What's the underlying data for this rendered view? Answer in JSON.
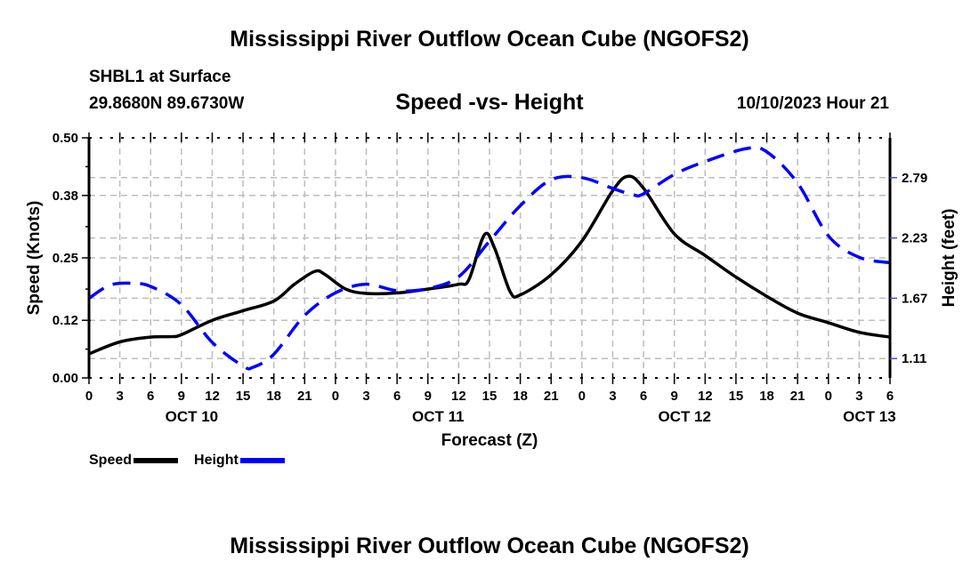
{
  "header": {
    "title": "Mississippi River Outflow Ocean Cube (NGOFS2)",
    "station": "SHBL1 at Surface",
    "coords": "29.8680N  89.6730W",
    "subtitle": "Speed -vs- Height",
    "datetime": "10/10/2023 Hour 21"
  },
  "footer": {
    "title": "Mississippi River Outflow Ocean Cube (NGOFS2)"
  },
  "legend": {
    "speed_label": "Speed",
    "height_label": "Height"
  },
  "chart_data": {
    "type": "line",
    "title": "Speed -vs- Height",
    "xlabel": "Forecast (Z)",
    "ylabel": "Speed (Knots)",
    "y2label": "Height (feet)",
    "xlim": [
      0,
      78
    ],
    "ylim": [
      0,
      0.5
    ],
    "y2lim": [
      0.93,
      3.16
    ],
    "grid": true,
    "legend_position": "bottom-left",
    "x_ticks": [
      0,
      3,
      6,
      9,
      12,
      15,
      18,
      21,
      24,
      27,
      30,
      33,
      36,
      39,
      42,
      45,
      48,
      51,
      54,
      57,
      60,
      63,
      66,
      69,
      72,
      75,
      78
    ],
    "x_tick_labels": [
      "0",
      "3",
      "6",
      "9",
      "12",
      "15",
      "18",
      "21",
      "0",
      "3",
      "6",
      "9",
      "12",
      "15",
      "18",
      "21",
      "0",
      "3",
      "6",
      "9",
      "12",
      "15",
      "18",
      "21",
      "0",
      "3",
      "6"
    ],
    "date_labels": [
      {
        "label": "OCT 10",
        "x": 10
      },
      {
        "label": "OCT 11",
        "x": 34
      },
      {
        "label": "OCT 12",
        "x": 58
      },
      {
        "label": "OCT 13",
        "x": 76
      }
    ],
    "y_ticks": [
      0.0,
      0.12,
      0.25,
      0.38,
      0.5
    ],
    "y_tick_labels": [
      "0.00",
      "0.12",
      "0.25",
      "0.38",
      "0.50"
    ],
    "y2_ticks": [
      1.11,
      1.67,
      2.23,
      2.79
    ],
    "y2_tick_labels": [
      "1.11",
      "1.67",
      "2.23",
      "2.79"
    ],
    "series": [
      {
        "name": "Speed",
        "axis": "left",
        "color": "#000000",
        "style": "solid",
        "x": [
          0,
          3,
          6,
          8,
          9,
          12,
          15,
          18,
          20,
          22,
          23,
          25,
          27,
          30,
          33,
          36,
          37,
          38.5,
          39.5,
          41,
          42,
          45,
          48,
          51,
          52.5,
          54,
          57,
          60,
          63,
          66,
          69,
          72,
          75,
          78
        ],
        "values": [
          0.05,
          0.075,
          0.085,
          0.086,
          0.09,
          0.12,
          0.14,
          0.16,
          0.195,
          0.222,
          0.215,
          0.185,
          0.176,
          0.177,
          0.185,
          0.195,
          0.205,
          0.298,
          0.27,
          0.18,
          0.173,
          0.215,
          0.285,
          0.39,
          0.42,
          0.395,
          0.3,
          0.255,
          0.21,
          0.17,
          0.135,
          0.115,
          0.095,
          0.085
        ]
      },
      {
        "name": "Height",
        "axis": "right",
        "color": "#0000ff",
        "style": "dashed",
        "x": [
          0,
          2,
          4,
          6,
          9,
          12,
          15,
          16,
          18,
          21,
          24,
          27,
          30,
          33,
          36,
          39,
          42,
          45,
          48,
          51,
          53,
          54,
          57,
          60,
          64,
          66,
          69,
          72,
          75,
          78
        ],
        "values": [
          1.67,
          1.79,
          1.81,
          1.78,
          1.61,
          1.26,
          1.04,
          1.03,
          1.15,
          1.51,
          1.72,
          1.8,
          1.74,
          1.76,
          1.87,
          2.2,
          2.53,
          2.77,
          2.79,
          2.69,
          2.63,
          2.64,
          2.82,
          2.94,
          3.06,
          3.03,
          2.74,
          2.25,
          2.05,
          2.0
        ]
      }
    ]
  }
}
